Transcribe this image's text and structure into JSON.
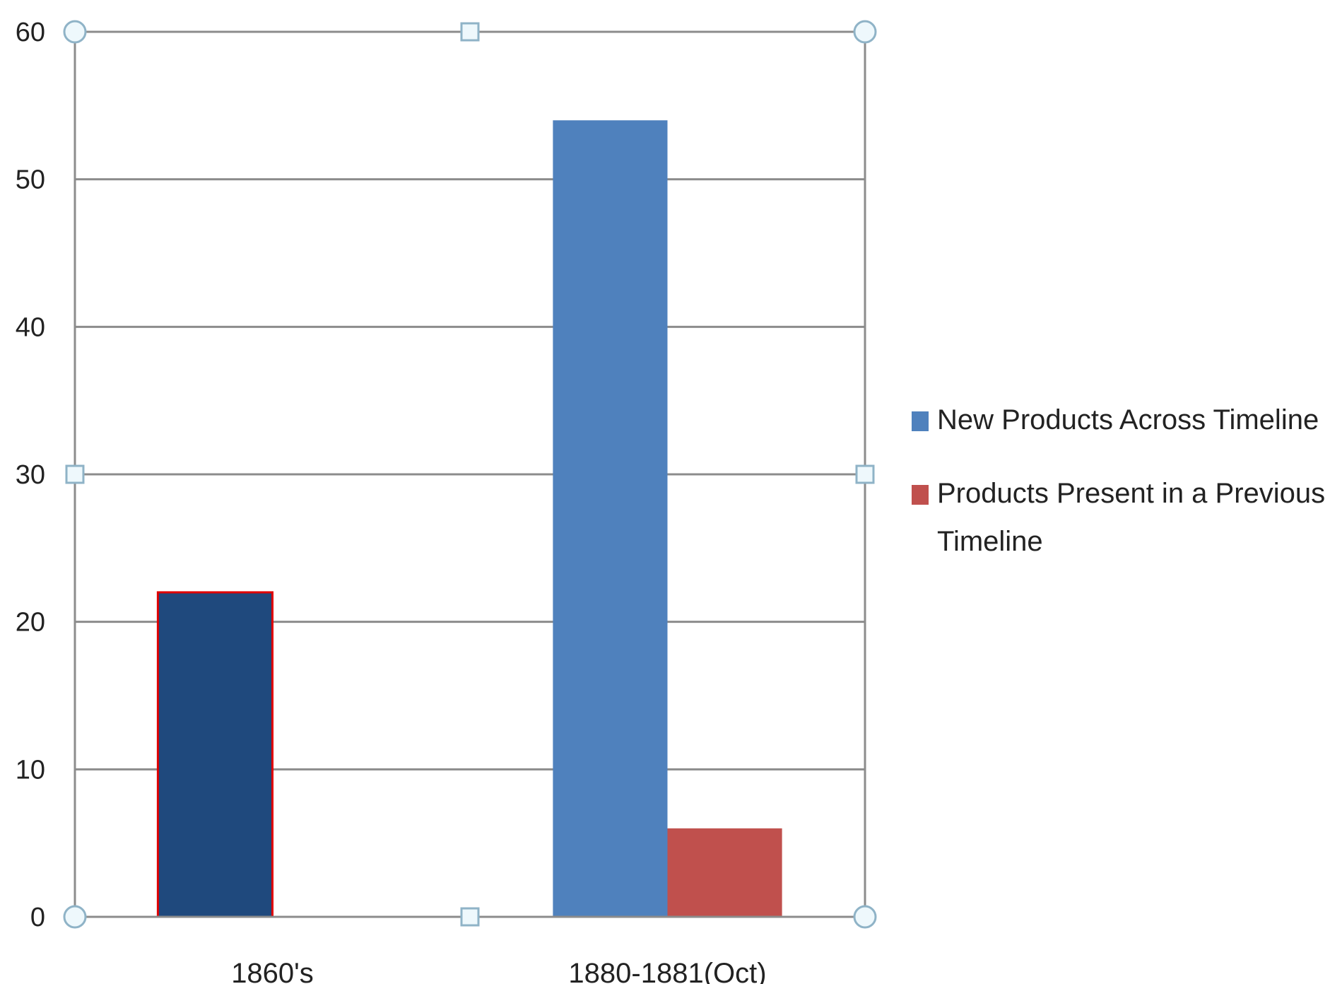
{
  "chart_data": {
    "type": "bar",
    "categories": [
      "1860's",
      "1880-1881(Oct)"
    ],
    "series": [
      {
        "name": "New Products Across Timeline",
        "values": [
          22,
          54
        ],
        "color": "#4f81bd",
        "highlight_colors": [
          "#1f497d",
          null
        ]
      },
      {
        "name": "Products Present in a Previous Timeline",
        "values": [
          0,
          6
        ],
        "color": "#c0504d"
      }
    ],
    "ylim": [
      0,
      60
    ],
    "yticks": [
      0,
      10,
      20,
      30,
      40,
      50,
      60
    ],
    "grid": true,
    "legend_position": "right",
    "selected": true,
    "title": "",
    "xlabel": "",
    "ylabel": ""
  }
}
